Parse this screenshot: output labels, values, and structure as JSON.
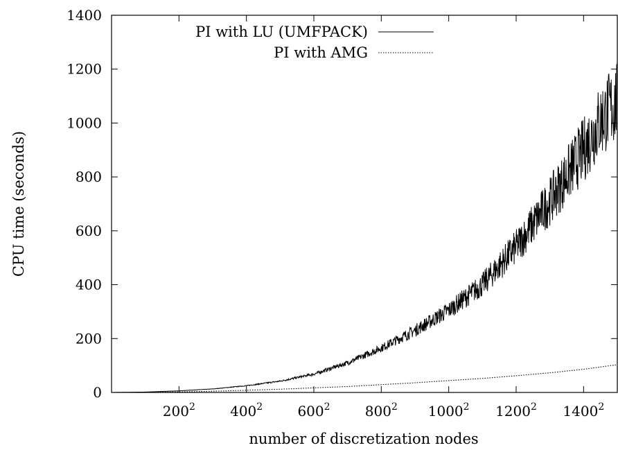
{
  "chart_data": {
    "type": "line",
    "title": "",
    "xlabel": "number of discretization nodes",
    "ylabel": "CPU time (seconds)",
    "xlim": [
      0,
      1500
    ],
    "ylim": [
      0,
      1400
    ],
    "y_ticks": [
      0,
      200,
      400,
      600,
      800,
      1000,
      1200,
      1400
    ],
    "x_ticks": [
      {
        "value": 200,
        "base": "200",
        "exp": "2"
      },
      {
        "value": 400,
        "base": "400",
        "exp": "2"
      },
      {
        "value": 600,
        "base": "600",
        "exp": "2"
      },
      {
        "value": 800,
        "base": "800",
        "exp": "2"
      },
      {
        "value": 1000,
        "base": "1000",
        "exp": "2"
      },
      {
        "value": 1200,
        "base": "1200",
        "exp": "2"
      },
      {
        "value": 1400,
        "base": "1400",
        "exp": "2"
      }
    ],
    "x_tick_note": "x is grid side length n; tick labels show n squared nodes",
    "grid": false,
    "legend_position": "top-right",
    "series": [
      {
        "name": "PI with LU (UMFPACK)",
        "style": "solid",
        "noisy": true,
        "x": [
          0,
          100,
          200,
          300,
          400,
          500,
          600,
          700,
          800,
          900,
          1000,
          1100,
          1200,
          1300,
          1400,
          1450,
          1500
        ],
        "y": [
          0,
          1.5,
          6,
          13,
          25,
          42,
          68,
          110,
          165,
          230,
          305,
          400,
          540,
          710,
          900,
          1010,
          1080
        ]
      },
      {
        "name": "PI with AMG",
        "style": "dotted",
        "noisy": false,
        "x": [
          0,
          100,
          200,
          300,
          400,
          500,
          600,
          700,
          800,
          900,
          1000,
          1100,
          1200,
          1300,
          1400,
          1500
        ],
        "y": [
          0,
          0.5,
          2,
          4.5,
          8,
          12,
          17,
          22,
          29,
          36,
          44,
          52,
          62,
          73,
          86,
          103
        ]
      }
    ]
  }
}
